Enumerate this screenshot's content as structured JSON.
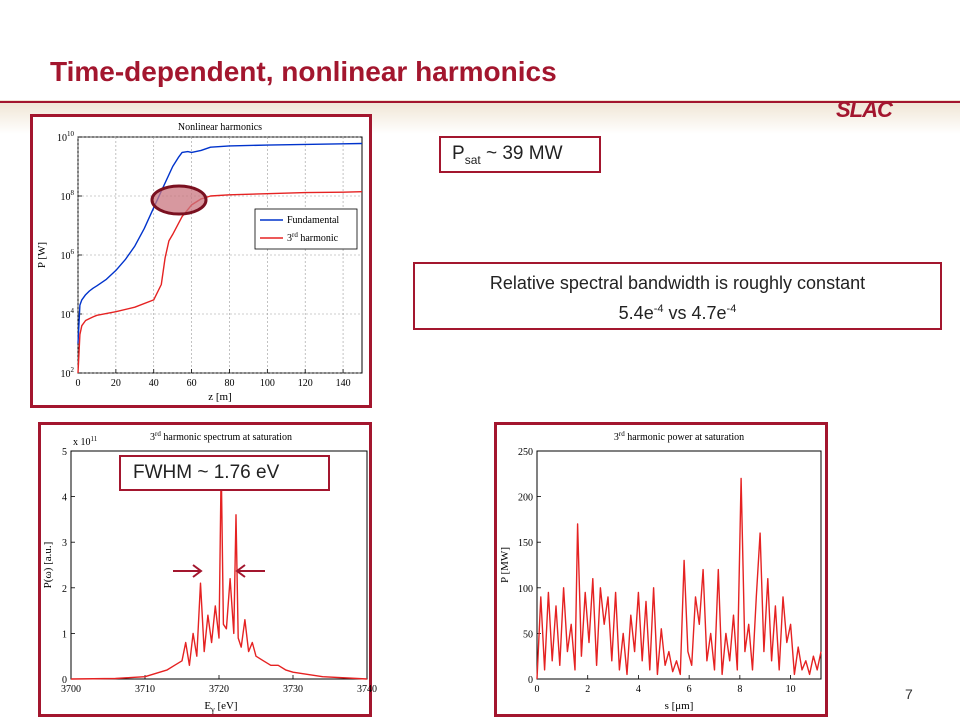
{
  "slide": {
    "title": "Time-dependent, nonlinear harmonics",
    "logo": "SLAC",
    "page_number": "7"
  },
  "callouts": {
    "psat_prefix": "P",
    "psat_sub": "sat",
    "psat_rest": " ~ 39 MW",
    "bw_line1": "Relative spectral bandwidth is roughly constant",
    "bw_a": "5.4e",
    "bw_a_exp": "-4",
    "bw_mid": " vs 4.7e",
    "bw_b_exp": "-4",
    "fwhm": "FWHM ~ 1.76 eV"
  },
  "chart_data": [
    {
      "type": "line",
      "title": "Nonlinear harmonics",
      "xlabel": "z [m]",
      "ylabel": "P [W]",
      "xlim": [
        0,
        150
      ],
      "ylim": [
        100,
        10000000000
      ],
      "yscale": "log",
      "grid": true,
      "legend": "right",
      "x_ticks": [
        0,
        20,
        40,
        60,
        80,
        100,
        120,
        140
      ],
      "y_ticks": [
        {
          "base": "10",
          "exp": "2"
        },
        {
          "base": "10",
          "exp": "4"
        },
        {
          "base": "10",
          "exp": "6"
        },
        {
          "base": "10",
          "exp": "8"
        },
        {
          "base": "10",
          "exp": "10"
        }
      ],
      "series": [
        {
          "name": "Fundamental",
          "color": "#0033cc",
          "x": [
            0,
            1,
            2,
            4,
            6,
            8,
            10,
            15,
            20,
            25,
            30,
            35,
            40,
            45,
            50,
            53,
            55,
            58,
            60,
            65,
            70,
            80,
            100,
            120,
            140,
            150
          ],
          "y": [
            1000,
            20000,
            30000,
            45000,
            60000,
            75000,
            90000,
            150000,
            300000,
            700000,
            2000000,
            8000000,
            40000000,
            200000000,
            1000000000,
            2000000000,
            3000000000,
            3200000000,
            3000000000,
            3500000000,
            4500000000,
            5000000000,
            5300000000,
            5600000000,
            5900000000,
            6000000000
          ]
        },
        {
          "name": "3rd harmonic",
          "name_prefix": "3",
          "name_sup": "rd",
          "name_rest": " harmonic",
          "color": "#e52222",
          "x": [
            0,
            1,
            2,
            4,
            6,
            8,
            10,
            20,
            30,
            40,
            44,
            46,
            48,
            50,
            55,
            60,
            65,
            70,
            80,
            100,
            120,
            140,
            150
          ],
          "y": [
            100,
            2000,
            4000,
            6000,
            7000,
            8000,
            9000,
            12000,
            17000,
            30000,
            100000,
            800000,
            3000000,
            5000000,
            20000000,
            50000000,
            80000000,
            100000000,
            110000000,
            120000000,
            130000000,
            135000000,
            140000000
          ]
        }
      ]
    },
    {
      "type": "line",
      "title_prefix": "3",
      "title_sup": "rd",
      "title_rest": " harmonic spectrum at saturation",
      "xlabel": "E",
      "xlabel_sub": "γ",
      "xlabel_rest": " [eV]",
      "ylabel": "P(ω) [a.u.]",
      "scale_base": "x 10",
      "scale_exp": "11",
      "xlim": [
        3700,
        3740
      ],
      "ylim": [
        0,
        5
      ],
      "x_ticks": [
        3700,
        3710,
        3720,
        3730,
        3740
      ],
      "y_ticks": [
        0,
        1,
        2,
        3,
        4,
        5
      ],
      "series": [
        {
          "color": "#e52222",
          "x": [
            3700,
            3706,
            3708,
            3710,
            3711,
            3712,
            3713,
            3714,
            3715,
            3715.5,
            3716,
            3716.5,
            3717,
            3717.5,
            3718,
            3718.5,
            3719,
            3719.5,
            3720,
            3720.3,
            3720.6,
            3721,
            3721.5,
            3722,
            3722.3,
            3722.6,
            3723,
            3723.5,
            3724,
            3724.5,
            3725,
            3726,
            3727,
            3728,
            3729,
            3730,
            3732,
            3734,
            3740
          ],
          "y": [
            0,
            0.01,
            0.03,
            0.05,
            0.1,
            0.15,
            0.2,
            0.3,
            0.4,
            0.8,
            0.3,
            1.0,
            0.5,
            2.1,
            0.6,
            1.4,
            0.8,
            1.6,
            0.9,
            4.7,
            1.2,
            1.1,
            2.2,
            1.0,
            3.6,
            0.9,
            0.7,
            1.3,
            0.6,
            0.8,
            0.5,
            0.4,
            0.3,
            0.3,
            0.2,
            0.15,
            0.1,
            0.05,
            0
          ]
        }
      ]
    },
    {
      "type": "line",
      "title_prefix": "3",
      "title_sup": "rd",
      "title_rest": " harmonic power at saturation",
      "xlabel": "s [μm]",
      "ylabel": "P [MW]",
      "xlim": [
        0,
        11.2
      ],
      "ylim": [
        0,
        250
      ],
      "x_ticks": [
        0,
        2,
        4,
        6,
        8,
        10
      ],
      "y_ticks": [
        0,
        50,
        100,
        150,
        200,
        250
      ],
      "series": [
        {
          "color": "#e52222",
          "x": [
            0,
            0.15,
            0.3,
            0.45,
            0.6,
            0.75,
            0.9,
            1.05,
            1.2,
            1.35,
            1.5,
            1.6,
            1.75,
            1.9,
            2.05,
            2.2,
            2.35,
            2.5,
            2.65,
            2.8,
            2.95,
            3.1,
            3.25,
            3.4,
            3.55,
            3.7,
            3.85,
            4.0,
            4.15,
            4.3,
            4.45,
            4.6,
            4.75,
            4.9,
            5.05,
            5.2,
            5.35,
            5.5,
            5.65,
            5.8,
            5.95,
            6.1,
            6.25,
            6.4,
            6.55,
            6.7,
            6.85,
            7.0,
            7.15,
            7.3,
            7.45,
            7.6,
            7.75,
            7.9,
            8.05,
            8.2,
            8.35,
            8.5,
            8.65,
            8.8,
            8.95,
            9.1,
            9.25,
            9.4,
            9.55,
            9.7,
            9.85,
            10.0,
            10.15,
            10.3,
            10.45,
            10.6,
            10.75,
            10.9,
            11.05,
            11.2
          ],
          "y": [
            0,
            90,
            10,
            95,
            20,
            80,
            15,
            100,
            30,
            60,
            10,
            170,
            25,
            95,
            40,
            110,
            15,
            100,
            60,
            90,
            20,
            95,
            10,
            50,
            5,
            70,
            30,
            95,
            20,
            85,
            10,
            100,
            5,
            55,
            15,
            30,
            8,
            20,
            5,
            130,
            30,
            15,
            90,
            60,
            120,
            20,
            50,
            10,
            120,
            5,
            50,
            20,
            70,
            10,
            220,
            30,
            60,
            10,
            90,
            160,
            30,
            110,
            20,
            80,
            10,
            90,
            40,
            60,
            5,
            35,
            10,
            20,
            5,
            25,
            10,
            30
          ]
        }
      ]
    }
  ]
}
